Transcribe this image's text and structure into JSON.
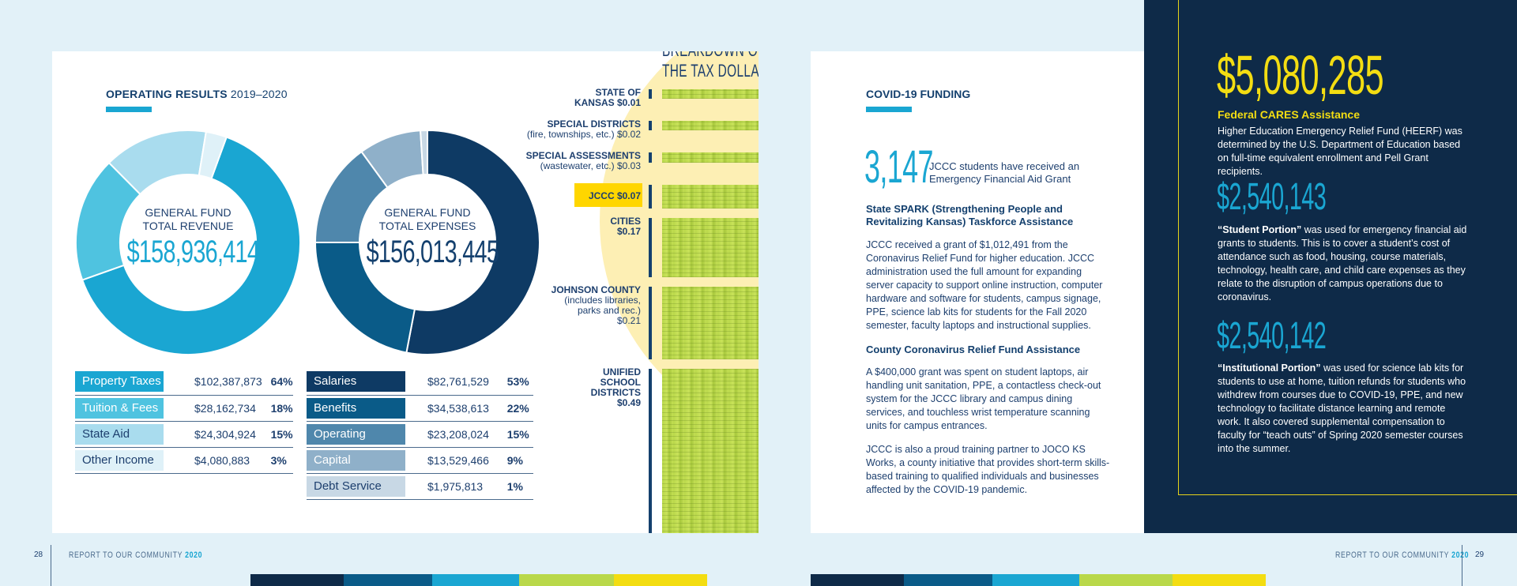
{
  "left_page": {
    "title": "OPERATING RESULTS",
    "title_years": "2019–2020",
    "revenue": {
      "label_line1": "GENERAL FUND",
      "label_line2": "TOTAL REVENUE",
      "amount": "$158,936,414",
      "items": [
        {
          "category": "Property Taxes",
          "amount": "$102,387,873",
          "percent": "64%",
          "value": 64,
          "color": "#1aa6d2"
        },
        {
          "category": "Tuition & Fees",
          "amount": "$28,162,734",
          "percent": "18%",
          "value": 18,
          "color": "#4fc3e0"
        },
        {
          "category": "State Aid",
          "amount": "$24,304,924",
          "percent": "15%",
          "value": 15,
          "color": "#a9dcee"
        },
        {
          "category": "Other Income",
          "amount": "$4,080,883",
          "percent": "3%",
          "value": 3,
          "color": "#dff1f8"
        }
      ]
    },
    "expenses": {
      "label_line1": "GENERAL FUND",
      "label_line2": "TOTAL EXPENSES",
      "amount": "$156,013,445",
      "items": [
        {
          "category": "Salaries",
          "amount": "$82,761,529",
          "percent": "53%",
          "value": 53,
          "color": "#0e3a64"
        },
        {
          "category": "Benefits",
          "amount": "$34,538,613",
          "percent": "22%",
          "value": 22,
          "color": "#0a5b88"
        },
        {
          "category": "Operating",
          "amount": "$23,208,024",
          "percent": "15%",
          "value": 15,
          "color": "#4f87ac"
        },
        {
          "category": "Capital",
          "amount": "$13,529,466",
          "percent": "9%",
          "value": 9,
          "color": "#8fb0c9"
        },
        {
          "category": "Debt Service",
          "amount": "$1,975,813",
          "percent": "1%",
          "value": 1,
          "color": "#c8d8e5"
        }
      ]
    },
    "tax_breakdown": {
      "heading_line1": "BREAKDOWN OF",
      "heading_line2": "THE TAX DOLLAR",
      "items": [
        {
          "name": "STATE OF",
          "name2": "KANSAS $0.01",
          "sub": "",
          "value": 0.01
        },
        {
          "name": "SPECIAL DISTRICTS",
          "name2": "",
          "sub": "(fire, townships, etc.) $0.02",
          "value": 0.02
        },
        {
          "name": "SPECIAL ASSESSMENTS",
          "name2": "",
          "sub": "(wastewater, etc.) $0.03",
          "value": 0.03
        },
        {
          "name": "JCCC $0.07",
          "name2": "",
          "sub": "",
          "value": 0.07
        },
        {
          "name": "CITIES",
          "name2": "$0.17",
          "sub": "",
          "value": 0.17
        },
        {
          "name": "JOHNSON COUNTY",
          "name2": "",
          "sub": "(includes libraries,|parks and rec.)|$0.21",
          "value": 0.21
        },
        {
          "name": "UNIFIED",
          "name2": "SCHOOL|DISTRICTS|$0.49",
          "sub": "",
          "value": 0.49
        }
      ]
    }
  },
  "right_page": {
    "title": "COVID-19 FUNDING",
    "stat_number": "3,147",
    "stat_desc": "JCCC students have received an Emergency Financial Aid Grant",
    "spark_head": "State SPARK (Strengthening People and Revitalizing Kansas) Taskforce Assistance",
    "spark_body": "JCCC received a grant of $1,012,491 from the Coronavirus Relief Fund for higher education. JCCC administration used the full amount for expanding server capacity to support online instruction, computer hardware and software for students, campus signage, PPE, science lab kits for students for the Fall 2020 semester, faculty laptops and instructional supplies.",
    "county_head": "County Coronavirus Relief Fund Assistance",
    "county_body": "A $400,000 grant was spent on student laptops, air handling unit sanitation, PPE, a contactless check-out system for the JCCC library and campus dining services, and touchless wrist temperature scanning units for campus entrances.",
    "jocoks_body": "JCCC is also a proud training partner to JOCO KS Works, a county initiative that provides short-term skills-based training to qualified individuals and businesses affected by the COVID-19 pandemic.",
    "cares_amount": "$5,080,285",
    "cares_head": "Federal CARES Assistance",
    "cares_body": "Higher Education Emergency Relief Fund (HEERF) was determined by the U.S. Department of Education based on full-time equivalent enrollment and Pell Grant recipients.",
    "student_amount": "$2,540,143",
    "student_bold": "“Student Portion”",
    "student_body": " was used for emergency financial aid grants to students. This is to cover a student’s cost of attendance such as food, housing, course materials, technology, health care, and child care expenses as they relate to the disruption of campus operations due to coronavirus.",
    "inst_amount": "$2,540,142",
    "inst_bold": "“Institutional Portion”",
    "inst_body": " was used for science lab kits for students to use at home, tuition refunds for students who withdrew from courses due to COVID-19, PPE, and new technology to facilitate distance learning and remote work. It also covered supplemental compensation to faculty for “teach outs” of Spring 2020 semester courses into the summer."
  },
  "footer": {
    "left_page_number": "28",
    "right_page_number": "29",
    "report_text": "REPORT TO OUR COMMUNITY",
    "report_year": "2020"
  },
  "colors": {
    "navy": "#0e2a48",
    "cyan": "#1aa6d2",
    "yellow": "#f3dd12",
    "lime": "#b9d84a"
  }
}
